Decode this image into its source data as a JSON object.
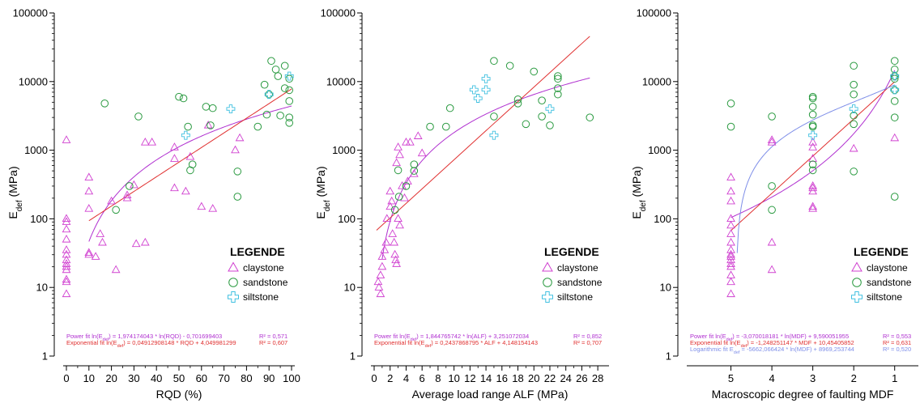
{
  "chart_data": [
    {
      "type": "scatter",
      "xlabel": "RQD (%)",
      "ylabel": "E_def (MPa)",
      "ylabel_main": "E",
      "ylabel_sub": "def",
      "ylabel_rest": " (MPa)",
      "y_scale": "log",
      "ylim": [
        1,
        100000
      ],
      "y_ticks": [
        "1",
        "10",
        "100",
        "1000",
        "10000",
        "100000"
      ],
      "xlim": [
        0,
        100
      ],
      "x_ticks": [
        "0",
        "10",
        "20",
        "30",
        "40",
        "50",
        "60",
        "70",
        "80",
        "90",
        "100"
      ],
      "x_reversed": false,
      "legend_title": "LEGENDE",
      "legend": [
        "claystone",
        "sandstone",
        "siltstone"
      ],
      "series": [
        {
          "name": "claystone",
          "marker": "triangle",
          "color": "#d040d0",
          "points": [
            [
              0,
              1400
            ],
            [
              0,
              100
            ],
            [
              0,
              90
            ],
            [
              0,
              70
            ],
            [
              0,
              50
            ],
            [
              0,
              35
            ],
            [
              0,
              30
            ],
            [
              0,
              25
            ],
            [
              0,
              22
            ],
            [
              0,
              20
            ],
            [
              0,
              18
            ],
            [
              0,
              13
            ],
            [
              0,
              12
            ],
            [
              0,
              8
            ],
            [
              10,
              400
            ],
            [
              10,
              250
            ],
            [
              10,
              140
            ],
            [
              10,
              32
            ],
            [
              10,
              30
            ],
            [
              13,
              28
            ],
            [
              15,
              60
            ],
            [
              16,
              45
            ],
            [
              20,
              180
            ],
            [
              22,
              18
            ],
            [
              27,
              200
            ],
            [
              27,
              220
            ],
            [
              30,
              310
            ],
            [
              31,
              43
            ],
            [
              35,
              1300
            ],
            [
              35,
              45
            ],
            [
              38,
              1300
            ],
            [
              48,
              1100
            ],
            [
              48,
              750
            ],
            [
              48,
              280
            ],
            [
              53,
              250
            ],
            [
              55,
              800
            ],
            [
              60,
              150
            ],
            [
              63,
              2300
            ],
            [
              65,
              140
            ],
            [
              75,
              1000
            ],
            [
              77,
              1500
            ]
          ]
        },
        {
          "name": "sandstone",
          "marker": "circle",
          "color": "#2a9a40",
          "points": [
            [
              17,
              4800
            ],
            [
              22,
              135
            ],
            [
              28,
              300
            ],
            [
              32,
              3100
            ],
            [
              50,
              6000
            ],
            [
              52,
              5700
            ],
            [
              54,
              2200
            ],
            [
              55,
              510
            ],
            [
              56,
              620
            ],
            [
              62,
              4300
            ],
            [
              65,
              4100
            ],
            [
              64,
              2300
            ],
            [
              76,
              490
            ],
            [
              76,
              210
            ],
            [
              85,
              2200
            ],
            [
              88,
              9000
            ],
            [
              89,
              3300
            ],
            [
              90,
              6500
            ],
            [
              91,
              20000
            ],
            [
              93,
              15000
            ],
            [
              94,
              12000
            ],
            [
              95,
              3200
            ],
            [
              97,
              17000
            ],
            [
              97,
              8000
            ],
            [
              99,
              11000
            ],
            [
              99,
              7500
            ],
            [
              99,
              5200
            ],
            [
              99,
              3000
            ],
            [
              99,
              2500
            ]
          ]
        },
        {
          "name": "siltstone",
          "marker": "cross",
          "color": "#40c0e0",
          "points": [
            [
              53,
              1650
            ],
            [
              73,
              4000
            ],
            [
              90,
              6500
            ],
            [
              99,
              12000
            ]
          ]
        }
      ],
      "fits": [
        {
          "label": "Power fit ln(E_def) = 1,974174043 * ln(RQD) - 0,701699403",
          "r2": "R² = 0,571",
          "color": "#b030d0",
          "form": "power",
          "a": 1.974174043,
          "b": -0.701699403,
          "x_range": [
            10,
            100
          ]
        },
        {
          "label": "Exponential fit ln(E_def) = 0,04912908148 * RQD + 4,049981299",
          "r2": "R² = 0,607",
          "color": "#e03030",
          "form": "exponential",
          "a": 0.04912908148,
          "b": 4.049981299,
          "x_range": [
            10,
            100
          ]
        }
      ]
    },
    {
      "type": "scatter",
      "xlabel": "Average load range ALF  (MPa)",
      "ylabel": "E_def (MPa)",
      "ylabel_main": "E",
      "ylabel_sub": "def",
      "ylabel_rest": " (MPa)",
      "y_scale": "log",
      "ylim": [
        1,
        100000
      ],
      "y_ticks": [
        "1",
        "10",
        "100",
        "1000",
        "10000",
        "100000"
      ],
      "xlim": [
        0,
        29
      ],
      "x_ticks": [
        "0",
        "2",
        "4",
        "6",
        "8",
        "10",
        "12",
        "14",
        "16",
        "18",
        "20",
        "22",
        "24",
        "26",
        "28"
      ],
      "x_reversed": false,
      "legend_title": "LEGENDE",
      "legend": [
        "claystone",
        "sandstone",
        "siltstone"
      ],
      "series": [
        {
          "name": "claystone",
          "marker": "triangle",
          "color": "#d040d0",
          "points": [
            [
              0.5,
              12
            ],
            [
              0.6,
              10
            ],
            [
              0.8,
              8
            ],
            [
              0.8,
              15
            ],
            [
              1,
              20
            ],
            [
              1,
              28
            ],
            [
              1.3,
              35
            ],
            [
              1.5,
              45
            ],
            [
              1.6,
              100
            ],
            [
              2,
              250
            ],
            [
              2,
              150
            ],
            [
              2.2,
              180
            ],
            [
              2.3,
              60
            ],
            [
              2.5,
              45
            ],
            [
              2.6,
              30
            ],
            [
              2.7,
              25
            ],
            [
              2.8,
              22
            ],
            [
              2.8,
              650
            ],
            [
              3,
              1100
            ],
            [
              3.2,
              850
            ],
            [
              3.5,
              300
            ],
            [
              3.8,
              200
            ],
            [
              4,
              1300
            ],
            [
              4.2,
              350
            ],
            [
              4.5,
              1300
            ],
            [
              5,
              450
            ],
            [
              5.5,
              1600
            ],
            [
              6,
              900
            ],
            [
              3,
              100
            ],
            [
              3.2,
              80
            ]
          ]
        },
        {
          "name": "sandstone",
          "marker": "circle",
          "color": "#2a9a40",
          "points": [
            [
              2.6,
              135
            ],
            [
              3,
              510
            ],
            [
              3.1,
              210
            ],
            [
              4,
              300
            ],
            [
              5,
              500
            ],
            [
              5,
              620
            ],
            [
              7,
              2200
            ],
            [
              9,
              2200
            ],
            [
              9.5,
              4100
            ],
            [
              15,
              3100
            ],
            [
              15,
              20000
            ],
            [
              17,
              17000
            ],
            [
              18,
              4800
            ],
            [
              18,
              5500
            ],
            [
              19,
              2400
            ],
            [
              20,
              14000
            ],
            [
              21,
              5300
            ],
            [
              21,
              3100
            ],
            [
              22,
              2300
            ],
            [
              23,
              12000
            ],
            [
              23,
              11000
            ],
            [
              23,
              8000
            ],
            [
              23,
              6500
            ],
            [
              27,
              3000
            ]
          ]
        },
        {
          "name": "siltstone",
          "marker": "cross",
          "color": "#40c0e0",
          "points": [
            [
              12.5,
              7600
            ],
            [
              13,
              5700
            ],
            [
              14,
              7600
            ],
            [
              14,
              11000
            ],
            [
              15,
              1650
            ],
            [
              22,
              4000
            ]
          ]
        }
      ],
      "fits": [
        {
          "label": "Power fit ln(E_def) = 1,844765742 * ln(ALF) + 3,251072034",
          "r2": "R² = 0,852",
          "color": "#b030d0",
          "form": "power",
          "a": 1.844765742,
          "b": 3.251072034,
          "x_range": [
            1,
            27
          ]
        },
        {
          "label": "Exponential fit ln(E_def) = 0,2437868795 * ALF + 4,148154143",
          "r2": "R² = 0,707",
          "color": "#e03030",
          "form": "exponential",
          "a": 0.2437868795,
          "b": 4.148154143,
          "x_range": [
            0.3,
            27
          ]
        }
      ]
    },
    {
      "type": "scatter",
      "xlabel": "Macroscopic degree of faulting MDF",
      "ylabel": "E_def (MPa)",
      "ylabel_main": "E",
      "ylabel_sub": "def",
      "ylabel_rest": " (MPa)",
      "y_scale": "log",
      "ylim": [
        1,
        100000
      ],
      "y_ticks": [
        "1",
        "10",
        "100",
        "1000",
        "10000",
        "100000"
      ],
      "xlim": [
        6,
        0.5
      ],
      "x_ticks": [
        "5",
        "4",
        "3",
        "2",
        "1"
      ],
      "x_reversed": true,
      "legend_title": "LEGENDE",
      "legend": [
        "claystone",
        "sandstone",
        "siltstone"
      ],
      "series": [
        {
          "name": "claystone",
          "marker": "triangle",
          "color": "#d040d0",
          "points": [
            [
              5,
              400
            ],
            [
              5,
              250
            ],
            [
              5,
              180
            ],
            [
              5,
              100
            ],
            [
              5,
              80
            ],
            [
              5,
              60
            ],
            [
              5,
              45
            ],
            [
              5,
              35
            ],
            [
              5,
              30
            ],
            [
              5,
              28
            ],
            [
              5,
              25
            ],
            [
              5,
              22
            ],
            [
              5,
              20
            ],
            [
              5,
              15
            ],
            [
              5,
              12
            ],
            [
              5,
              8
            ],
            [
              4,
              1400
            ],
            [
              4,
              1300
            ],
            [
              4,
              45
            ],
            [
              4,
              18
            ],
            [
              3,
              1300
            ],
            [
              3,
              1100
            ],
            [
              3,
              750
            ],
            [
              3,
              300
            ],
            [
              3,
              280
            ],
            [
              3,
              250
            ],
            [
              3,
              150
            ],
            [
              3,
              140
            ],
            [
              2,
              1050
            ],
            [
              1,
              1500
            ]
          ]
        },
        {
          "name": "sandstone",
          "marker": "circle",
          "color": "#2a9a40",
          "points": [
            [
              5,
              4800
            ],
            [
              5,
              2200
            ],
            [
              4,
              3100
            ],
            [
              4,
              300
            ],
            [
              4,
              135
            ],
            [
              3,
              6000
            ],
            [
              3,
              5700
            ],
            [
              3,
              4300
            ],
            [
              3,
              3300
            ],
            [
              3,
              2300
            ],
            [
              3,
              2200
            ],
            [
              3,
              620
            ],
            [
              3,
              510
            ],
            [
              2,
              17000
            ],
            [
              2,
              9000
            ],
            [
              2,
              6500
            ],
            [
              2,
              3200
            ],
            [
              2,
              2400
            ],
            [
              2,
              490
            ],
            [
              1,
              20000
            ],
            [
              1,
              15000
            ],
            [
              1,
              12000
            ],
            [
              1,
              11000
            ],
            [
              1,
              7500
            ],
            [
              1,
              5200
            ],
            [
              1,
              3000
            ],
            [
              1,
              210
            ]
          ]
        },
        {
          "name": "siltstone",
          "marker": "cross",
          "color": "#40c0e0",
          "points": [
            [
              3,
              1650
            ],
            [
              2,
              4000
            ],
            [
              1,
              12000
            ],
            [
              1,
              7600
            ]
          ]
        }
      ],
      "fits": [
        {
          "label": "Power fit ln(E_def) = -3,070018181 * ln(MDF) + 9,590051955",
          "r2": "R² = 0,553",
          "color": "#b030d0",
          "form": "power",
          "a": -3.070018181,
          "b": 9.590051955,
          "x_range": [
            1,
            5
          ]
        },
        {
          "label": "Exponential fit ln(E_def) = -1,248251147 * MDF + 10,45405852",
          "r2": "R² = 0,631",
          "color": "#e03030",
          "form": "exponential",
          "a": -1.248251147,
          "b": 10.45405852,
          "x_range": [
            1,
            5
          ]
        },
        {
          "label": "Logarithmic fit E_def = -5662,066424 * ln(MDF) + 8969,253744",
          "r2": "R² = 0,520",
          "color": "#7e8ee8",
          "form": "logarithmic",
          "a": -5662.066424,
          "b": 8969.253744,
          "x_range": [
            1,
            4.88
          ]
        }
      ]
    }
  ]
}
